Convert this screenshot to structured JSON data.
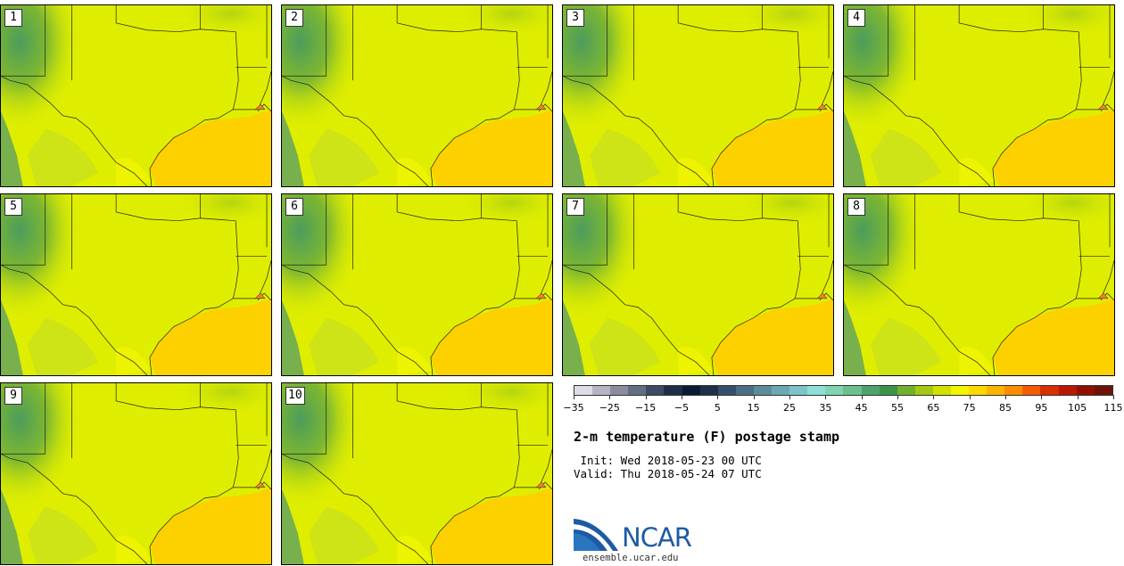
{
  "panels": [
    "1",
    "2",
    "3",
    "4",
    "5",
    "6",
    "7",
    "8",
    "9",
    "10"
  ],
  "colorbar": {
    "colors": [
      "#dcdce6",
      "#b4b4c4",
      "#8c8ca0",
      "#646e82",
      "#3c4a64",
      "#1e2e48",
      "#0a1a32",
      "#1e3048",
      "#34506a",
      "#4c6e84",
      "#5c8c9c",
      "#6ca8b4",
      "#7cc4c8",
      "#8ce0d8",
      "#80d4b0",
      "#6cc08c",
      "#4ca46c",
      "#3c9448",
      "#70b02c",
      "#a4c814",
      "#d4e000",
      "#f4f400",
      "#fcd800",
      "#fcb400",
      "#fc8c00",
      "#f45c00",
      "#d83000",
      "#b81800",
      "#901000",
      "#6c1408"
    ],
    "labels": [
      "−35",
      "−25",
      "−15",
      "−5",
      "5",
      "15",
      "25",
      "35",
      "45",
      "55",
      "65",
      "75",
      "85",
      "95",
      "105",
      "115"
    ]
  },
  "title": "2-m temperature (F) postage stamp",
  "init": " Init: Wed 2018-05-23 00 UTC",
  "valid": "Valid: Thu 2018-05-24 07 UTC",
  "logo": {
    "text": "NCAR",
    "url": "ensemble.ucar.edu"
  }
}
